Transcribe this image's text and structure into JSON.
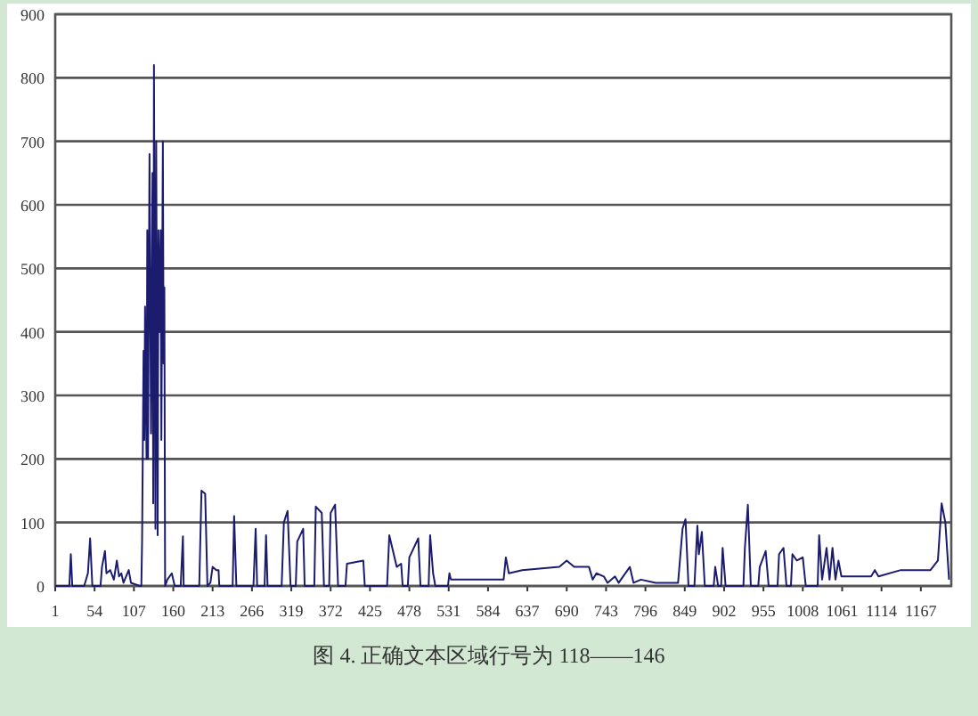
{
  "chart_data": {
    "type": "line",
    "color": "#1c1c6e",
    "x": [
      1,
      20,
      22,
      24,
      40,
      45,
      48,
      51,
      62,
      64,
      68,
      70,
      75,
      80,
      84,
      87,
      90,
      93,
      100,
      103,
      115,
      117,
      118,
      120,
      121,
      122,
      124,
      125,
      126,
      128,
      130,
      132,
      133,
      134,
      136,
      137,
      139,
      140,
      141,
      143,
      144,
      146,
      147,
      148,
      149,
      152,
      158,
      162,
      170,
      173,
      174,
      195,
      198,
      203,
      206,
      210,
      213,
      218,
      221,
      222,
      240,
      242,
      245,
      268,
      271,
      273,
      283,
      285,
      287,
      306,
      309,
      314,
      318,
      325,
      327,
      335,
      337,
      350,
      352,
      360,
      363,
      370,
      372,
      378,
      382,
      392,
      394,
      416,
      418,
      448,
      451,
      455,
      461,
      467,
      469,
      476,
      478,
      490,
      493,
      504,
      506,
      510,
      513,
      530,
      532,
      534,
      605,
      608,
      612,
      630,
      660,
      680,
      690,
      700,
      720,
      725,
      730,
      740,
      745,
      755,
      760,
      775,
      780,
      790,
      810,
      840,
      846,
      850,
      854,
      862,
      866,
      868,
      872,
      876,
      888,
      890,
      894,
      898,
      900,
      904,
      928,
      930,
      934,
      938,
      948,
      950,
      958,
      962,
      974,
      976,
      982,
      986,
      992,
      994,
      1000,
      1008,
      1012,
      1028,
      1030,
      1034,
      1040,
      1044,
      1048,
      1052,
      1056,
      1060,
      1080,
      1100,
      1105,
      1110,
      1140,
      1160,
      1180,
      1190,
      1195,
      1200,
      1205
    ],
    "values": [
      0,
      0,
      50,
      0,
      0,
      20,
      75,
      0,
      0,
      30,
      55,
      20,
      25,
      10,
      40,
      15,
      20,
      5,
      25,
      5,
      0,
      0,
      70,
      370,
      230,
      440,
      200,
      560,
      200,
      680,
      240,
      650,
      130,
      820,
      90,
      700,
      80,
      560,
      400,
      560,
      230,
      700,
      350,
      470,
      0,
      10,
      20,
      0,
      0,
      78,
      0,
      0,
      150,
      145,
      0,
      5,
      30,
      25,
      25,
      0,
      0,
      110,
      0,
      0,
      90,
      0,
      0,
      80,
      0,
      0,
      100,
      118,
      0,
      0,
      70,
      90,
      0,
      0,
      125,
      115,
      0,
      0,
      115,
      128,
      0,
      0,
      35,
      40,
      0,
      0,
      80,
      60,
      30,
      35,
      0,
      0,
      45,
      75,
      0,
      0,
      80,
      20,
      0,
      0,
      20,
      10,
      10,
      45,
      20,
      25,
      28,
      30,
      40,
      30,
      30,
      10,
      20,
      15,
      5,
      15,
      5,
      30,
      5,
      10,
      5,
      5,
      90,
      105,
      0,
      0,
      95,
      50,
      85,
      0,
      0,
      30,
      0,
      0,
      60,
      0,
      0,
      60,
      128,
      0,
      0,
      30,
      55,
      0,
      0,
      50,
      60,
      0,
      0,
      50,
      40,
      45,
      0,
      0,
      80,
      10,
      60,
      10,
      60,
      10,
      40,
      15,
      15,
      15,
      25,
      15,
      25,
      25,
      25,
      40,
      130,
      100,
      10
    ],
    "xlim": [
      1,
      1208
    ],
    "xticks": [
      1,
      54,
      107,
      160,
      213,
      266,
      319,
      372,
      425,
      478,
      531,
      584,
      637,
      690,
      743,
      796,
      849,
      902,
      955,
      1008,
      1061,
      1114,
      1167
    ],
    "ylim": [
      0,
      900
    ],
    "yticks": [
      0,
      100,
      200,
      300,
      400,
      500,
      600,
      700,
      800,
      900
    ],
    "grid": "y",
    "annotations": [
      "图 4. 正确文本区域行号为 118——146"
    ]
  }
}
